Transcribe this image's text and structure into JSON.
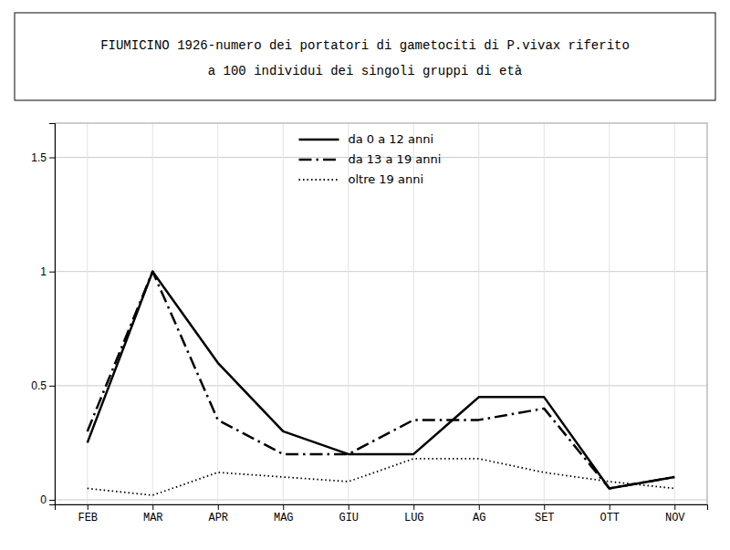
{
  "chart_data": {
    "type": "line",
    "title": "FIUMICINO 1926-numero dei portatori di gametociti di P.vivax riferito",
    "subtitle": "a 100 individui dei singoli gruppi di età",
    "categories": [
      "FEB",
      "MAR",
      "APR",
      "MAG",
      "GIU",
      "LUG",
      "AG",
      "SET",
      "OTT",
      "NOV"
    ],
    "series": [
      {
        "name": "da 0 a 12 anni",
        "color": "#000000",
        "line_style": "solid",
        "values": [
          0.25,
          1.0,
          0.6,
          0.3,
          0.2,
          0.2,
          0.45,
          0.45,
          0.05,
          0.1
        ]
      },
      {
        "name": "da 13 a 19 anni",
        "color": "#000000",
        "line_style": "dashdot",
        "values": [
          0.3,
          1.0,
          0.35,
          0.2,
          0.2,
          0.35,
          0.35,
          0.4,
          0.05,
          0.1
        ]
      },
      {
        "name": "oltre 19 anni",
        "color": "#000000",
        "line_style": "dotted",
        "values": [
          0.05,
          0.02,
          0.12,
          0.1,
          0.08,
          0.18,
          0.18,
          0.12,
          0.08,
          0.05
        ]
      }
    ],
    "ylim": [
      -0.02,
      1.65
    ],
    "yticks": [
      0,
      0.5,
      1,
      1.5
    ],
    "grid": true,
    "legend": "top"
  }
}
